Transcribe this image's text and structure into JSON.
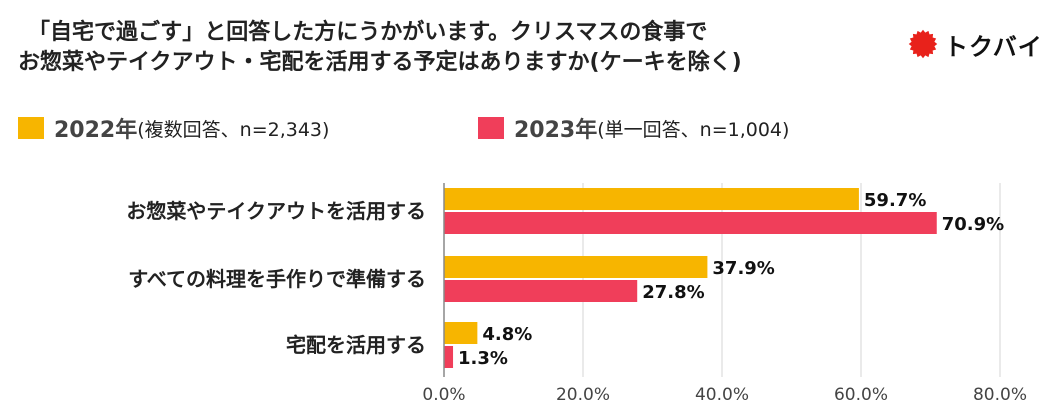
{
  "title": {
    "line1": "「自宅で過ごす」と回答した方にうかがいます。クリスマスの食事で",
    "line2": "お惣菜やテイクアウト・宅配を活用する予定はありますか(ケーキを除く)"
  },
  "logo": {
    "text": "トクバイ",
    "color": "#e8221b"
  },
  "legend": [
    {
      "year": "2022年",
      "note": "(複数回答、n=2,343)",
      "color": "#f7b500"
    },
    {
      "year": "2023年",
      "note": "(単一回答、n=1,004)",
      "color": "#f03e5a"
    }
  ],
  "chart_data": {
    "type": "bar",
    "orientation": "horizontal",
    "categories": [
      "お惣菜やテイクアウトを活用する",
      "すべての料理を手作りで準備する",
      "宅配を活用する"
    ],
    "series": [
      {
        "name": "2022年",
        "values": [
          59.7,
          37.9,
          4.8
        ],
        "labels": [
          "59.7%",
          "37.9%",
          "4.8%"
        ],
        "color": "#f7b500"
      },
      {
        "name": "2023年",
        "values": [
          70.9,
          27.8,
          1.3
        ],
        "labels": [
          "70.9%",
          "27.8%",
          "1.3%"
        ],
        "color": "#f03e5a"
      }
    ],
    "xlim": [
      0,
      80
    ],
    "ticks": [
      0,
      20,
      40,
      60,
      80
    ],
    "tick_labels": [
      "0.0%",
      "20.0%",
      "40.0%",
      "60.0%",
      "80.0%"
    ],
    "grid": true,
    "legend_position": "top-left"
  }
}
